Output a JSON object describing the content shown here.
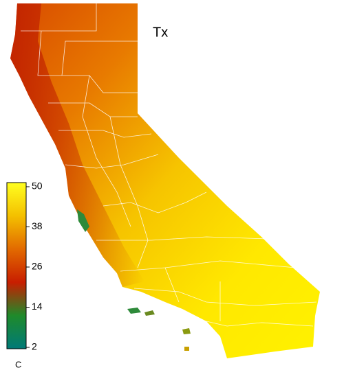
{
  "title": "Tx",
  "colorbar": {
    "range": [
      2,
      50
    ],
    "ticks": [
      50,
      38,
      26,
      14,
      2
    ],
    "unit": "C",
    "colors": [
      "#ffff20",
      "#f4c000",
      "#e26a00",
      "#c81e00",
      "#1f8a2a",
      "#007a78"
    ]
  }
}
